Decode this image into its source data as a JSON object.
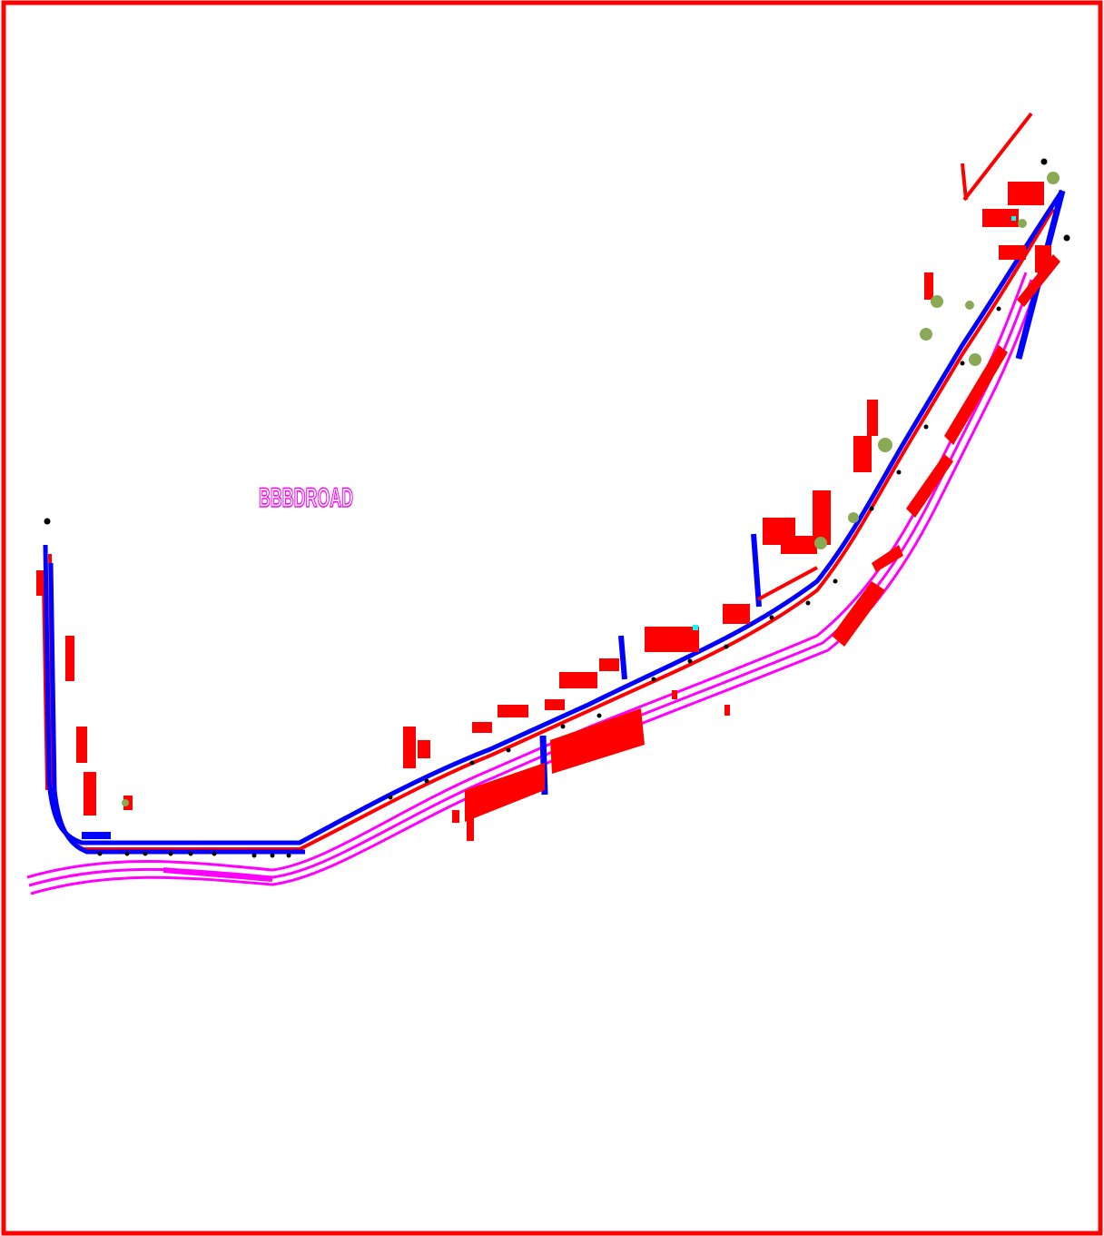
{
  "map": {
    "road_label": "BBBDROAD",
    "colors": {
      "frame": "#ff0000",
      "road_centerline": "#0000ff",
      "road_edge": "#ff0000",
      "railway": "#ff00ff",
      "buildings": "#ff0000",
      "vegetation": "#88aa55",
      "markers": "#000000",
      "highlight": "#00ffff",
      "label": "#ff00ff"
    }
  }
}
